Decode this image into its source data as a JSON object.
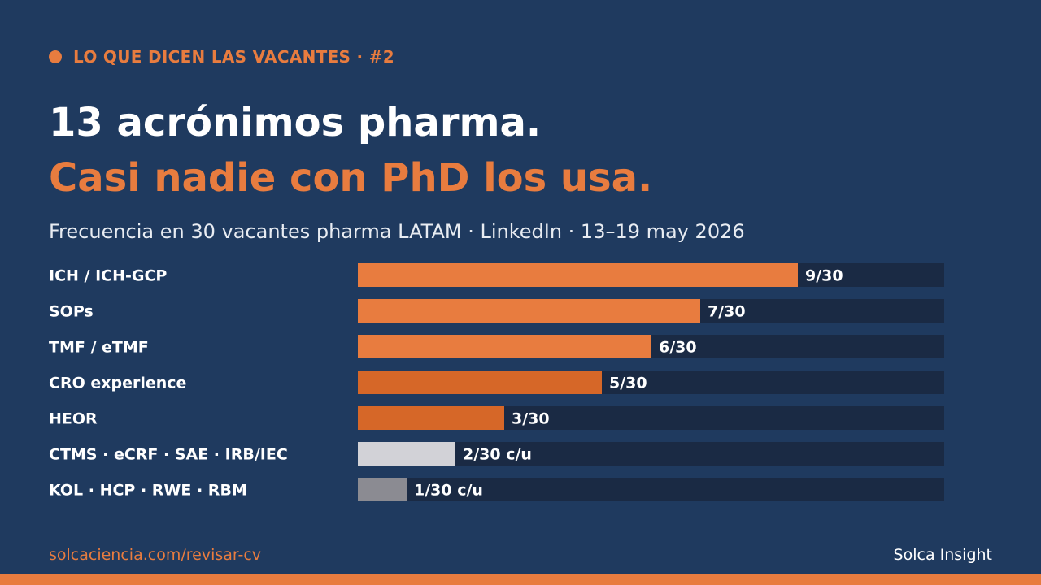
{
  "header": {
    "kicker": "LO QUE DICEN LAS VACANTES · #2",
    "title_line1": "13 acrónimos pharma.",
    "title_line2": "Casi nadie con PhD los usa.",
    "subtitle": "Frecuencia en 30 vacantes pharma LATAM · LinkedIn · 13–19 may 2026"
  },
  "chart_data": {
    "type": "bar",
    "orientation": "horizontal",
    "categories": [
      "ICH / ICH-GCP",
      "SOPs",
      "TMF / eTMF",
      "CRO experience",
      "HEOR",
      "CTMS · eCRF · SAE · IRB/IEC",
      "KOL · HCP · RWE · RBM"
    ],
    "values": [
      9,
      7,
      6,
      5,
      3,
      2,
      1
    ],
    "value_labels": [
      "9/30",
      "7/30",
      "6/30",
      "5/30",
      "3/30",
      "2/30 c/u",
      "1/30 c/u"
    ],
    "xlim": [
      0,
      12
    ],
    "colors": [
      "#e87c3f",
      "#e87c3f",
      "#e87c3f",
      "#d66728",
      "#d66728",
      "#d2d2d7",
      "#8b8b92"
    ],
    "track_color": "#1a2a44",
    "grid": false,
    "legend": "none"
  },
  "footer": {
    "link": "solcaciencia.com/revisar-cv",
    "brand": "Solca Insight"
  },
  "colors": {
    "background": "#1f3a5f",
    "accent": "#e87c3f"
  }
}
